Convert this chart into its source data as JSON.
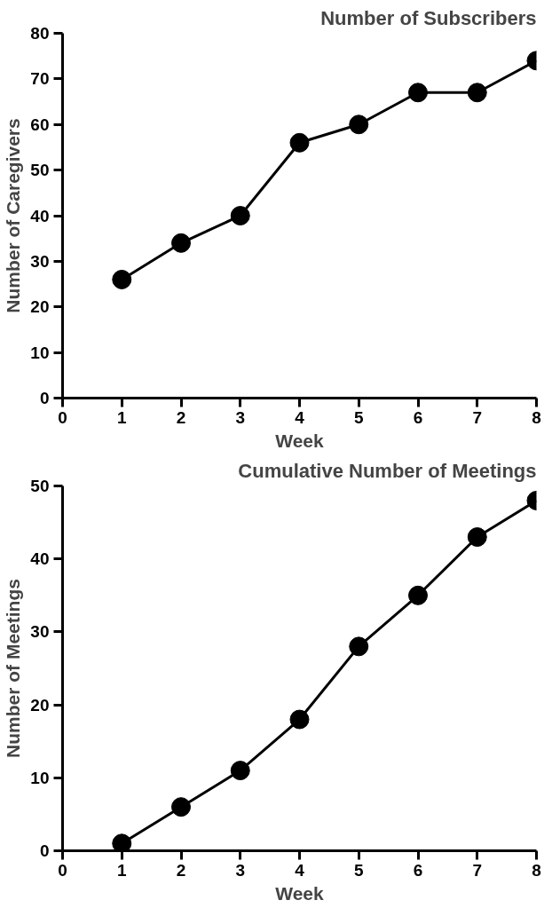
{
  "chart_data": [
    {
      "type": "line",
      "title": "Number of Subscribers",
      "xlabel": "Week",
      "ylabel": "Number of Caregivers",
      "x": [
        1,
        2,
        3,
        4,
        5,
        6,
        7,
        8
      ],
      "values": [
        26,
        34,
        40,
        56,
        60,
        67,
        67,
        74
      ],
      "color": "#000000",
      "xlim": [
        0,
        8
      ],
      "ylim": [
        0,
        80
      ],
      "xticks": [
        0,
        1,
        2,
        3,
        4,
        5,
        6,
        7,
        8
      ],
      "yticks": [
        0,
        10,
        20,
        30,
        40,
        50,
        60,
        70,
        80
      ],
      "marker": "circle"
    },
    {
      "type": "line",
      "title": "Cumulative Number of Meetings",
      "xlabel": "Week",
      "ylabel": "Number of Meetings",
      "x": [
        1,
        2,
        3,
        4,
        5,
        6,
        7,
        8
      ],
      "values": [
        1,
        6,
        11,
        18,
        28,
        35,
        43,
        48
      ],
      "color": "#000000",
      "xlim": [
        0,
        8
      ],
      "ylim": [
        0,
        50
      ],
      "xticks": [
        0,
        1,
        2,
        3,
        4,
        5,
        6,
        7,
        8
      ],
      "yticks": [
        0,
        10,
        20,
        30,
        40,
        50
      ],
      "marker": "circle"
    }
  ]
}
